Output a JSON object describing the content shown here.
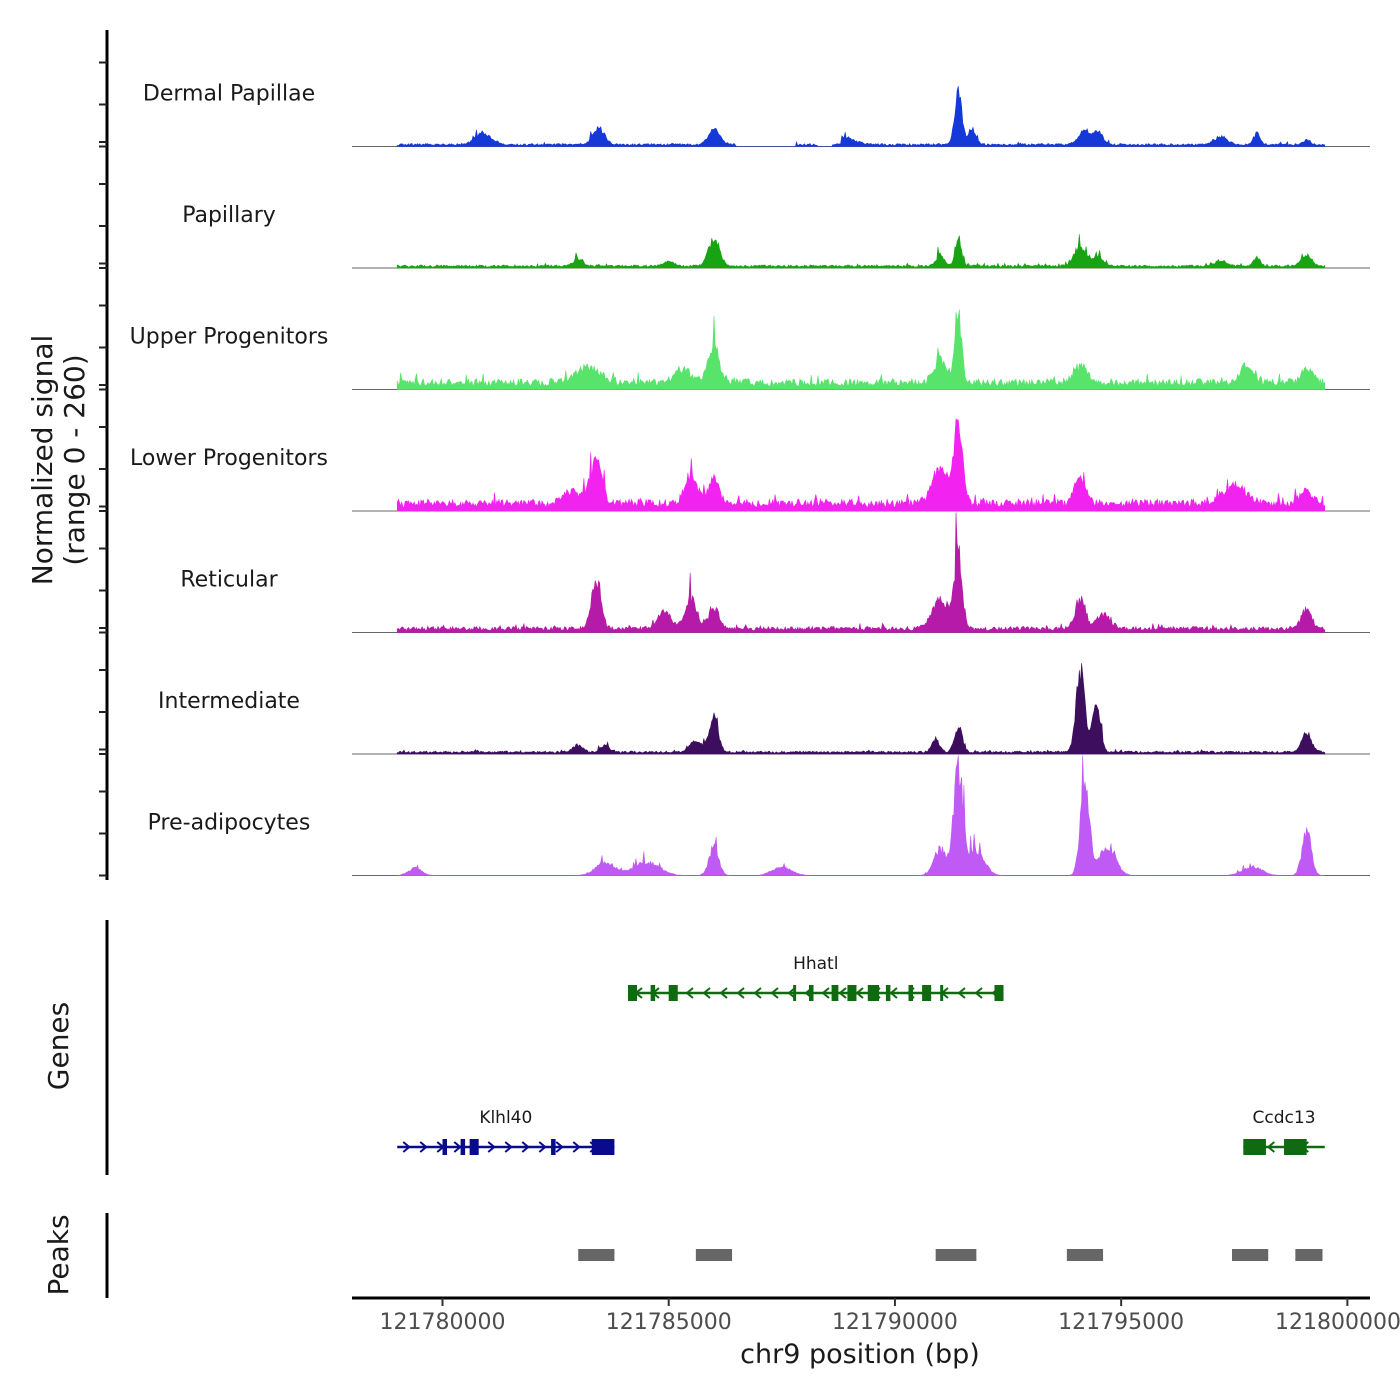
{
  "chart_data": {
    "type": "area",
    "title": "",
    "xlabel": "chr9 position (bp)",
    "ylabel_line1": "Normalized signal",
    "ylabel_line2": "(range 0 - 260)",
    "ylim": [
      0,
      260
    ],
    "xlim": [
      121778000,
      121800500
    ],
    "xticks": [
      121780000,
      121785000,
      121790000,
      121795000,
      121800000
    ],
    "xtick_labels": [
      "121780000",
      "121785000",
      "121790000",
      "121795000",
      "121800000"
    ],
    "tracks": [
      {
        "name": "Dermal Papillae",
        "color": "#1538d8",
        "base": 5,
        "peaks": [
          {
            "x": 121780900,
            "h": 28,
            "w": 250
          },
          {
            "x": 121783450,
            "h": 40,
            "w": 180
          },
          {
            "x": 121786000,
            "h": 35,
            "w": 180
          },
          {
            "x": 121788900,
            "h": 18,
            "w": 300
          },
          {
            "x": 121791400,
            "h": 120,
            "w": 110
          },
          {
            "x": 121791700,
            "h": 35,
            "w": 120
          },
          {
            "x": 121794200,
            "h": 30,
            "w": 200
          },
          {
            "x": 121794500,
            "h": 25,
            "w": 150
          },
          {
            "x": 121797200,
            "h": 20,
            "w": 200
          },
          {
            "x": 121798000,
            "h": 28,
            "w": 100
          },
          {
            "x": 121799100,
            "h": 10,
            "w": 120
          }
        ],
        "gaps": [
          [
            121786500,
            121787800
          ],
          [
            121788300,
            121788800
          ]
        ]
      },
      {
        "name": "Papillary",
        "color": "#18a315",
        "base": 5,
        "peaks": [
          {
            "x": 121783000,
            "h": 18,
            "w": 150
          },
          {
            "x": 121785000,
            "h": 12,
            "w": 150
          },
          {
            "x": 121786000,
            "h": 62,
            "w": 180
          },
          {
            "x": 121791400,
            "h": 68,
            "w": 100
          },
          {
            "x": 121791000,
            "h": 28,
            "w": 120
          },
          {
            "x": 121794100,
            "h": 40,
            "w": 200
          },
          {
            "x": 121794500,
            "h": 22,
            "w": 150
          },
          {
            "x": 121797200,
            "h": 12,
            "w": 200
          },
          {
            "x": 121798000,
            "h": 20,
            "w": 100
          },
          {
            "x": 121799100,
            "h": 28,
            "w": 150
          }
        ],
        "gaps": []
      },
      {
        "name": "Upper Progenitors",
        "color": "#58e36b",
        "base": 18,
        "peaks": [
          {
            "x": 121783200,
            "h": 35,
            "w": 400
          },
          {
            "x": 121786000,
            "h": 78,
            "w": 180
          },
          {
            "x": 121785300,
            "h": 30,
            "w": 250
          },
          {
            "x": 121791400,
            "h": 150,
            "w": 110
          },
          {
            "x": 121791000,
            "h": 50,
            "w": 200
          },
          {
            "x": 121794100,
            "h": 40,
            "w": 200
          },
          {
            "x": 121797800,
            "h": 38,
            "w": 200
          },
          {
            "x": 121799100,
            "h": 30,
            "w": 200
          }
        ],
        "gaps": []
      },
      {
        "name": "Lower Progenitors",
        "color": "#f222f0",
        "base": 20,
        "peaks": [
          {
            "x": 121783400,
            "h": 95,
            "w": 180
          },
          {
            "x": 121782900,
            "h": 30,
            "w": 300
          },
          {
            "x": 121785500,
            "h": 62,
            "w": 200
          },
          {
            "x": 121786000,
            "h": 55,
            "w": 160
          },
          {
            "x": 121791400,
            "h": 170,
            "w": 140
          },
          {
            "x": 121791000,
            "h": 80,
            "w": 250
          },
          {
            "x": 121794100,
            "h": 60,
            "w": 160
          },
          {
            "x": 121797500,
            "h": 40,
            "w": 350
          },
          {
            "x": 121799100,
            "h": 30,
            "w": 200
          }
        ],
        "gaps": []
      },
      {
        "name": "Reticular",
        "color": "#b51aa8",
        "base": 10,
        "peaks": [
          {
            "x": 121783400,
            "h": 112,
            "w": 150
          },
          {
            "x": 121784900,
            "h": 40,
            "w": 200
          },
          {
            "x": 121785500,
            "h": 68,
            "w": 180
          },
          {
            "x": 121786000,
            "h": 50,
            "w": 150
          },
          {
            "x": 121791400,
            "h": 175,
            "w": 120
          },
          {
            "x": 121791000,
            "h": 70,
            "w": 250
          },
          {
            "x": 121794100,
            "h": 70,
            "w": 160
          },
          {
            "x": 121794600,
            "h": 35,
            "w": 200
          },
          {
            "x": 121799100,
            "h": 50,
            "w": 150
          }
        ],
        "gaps": []
      },
      {
        "name": "Intermediate",
        "color": "#3d0e5e",
        "base": 5,
        "peaks": [
          {
            "x": 121783000,
            "h": 18,
            "w": 150
          },
          {
            "x": 121783600,
            "h": 15,
            "w": 150
          },
          {
            "x": 121785600,
            "h": 28,
            "w": 200
          },
          {
            "x": 121786000,
            "h": 92,
            "w": 130
          },
          {
            "x": 121791400,
            "h": 60,
            "w": 120
          },
          {
            "x": 121790900,
            "h": 30,
            "w": 120
          },
          {
            "x": 121794100,
            "h": 180,
            "w": 140
          },
          {
            "x": 121794450,
            "h": 120,
            "w": 120
          },
          {
            "x": 121799100,
            "h": 45,
            "w": 150
          }
        ],
        "gaps": []
      },
      {
        "name": "Pre-adipocytes",
        "color": "#c05af5",
        "base": 0,
        "peaks": [
          {
            "x": 121779400,
            "h": 18,
            "w": 200
          },
          {
            "x": 121783600,
            "h": 30,
            "w": 300
          },
          {
            "x": 121784500,
            "h": 30,
            "w": 400
          },
          {
            "x": 121786000,
            "h": 65,
            "w": 150
          },
          {
            "x": 121787500,
            "h": 20,
            "w": 300
          },
          {
            "x": 121791400,
            "h": 255,
            "w": 140
          },
          {
            "x": 121791000,
            "h": 60,
            "w": 200
          },
          {
            "x": 121791800,
            "h": 60,
            "w": 250
          },
          {
            "x": 121794200,
            "h": 210,
            "w": 140
          },
          {
            "x": 121794700,
            "h": 70,
            "w": 250
          },
          {
            "x": 121797900,
            "h": 20,
            "w": 300
          },
          {
            "x": 121799100,
            "h": 105,
            "w": 140
          }
        ],
        "gaps": [
          [
            121780000,
            121780500
          ],
          [
            121781200,
            121781700
          ],
          [
            121782200,
            121782800
          ],
          [
            121786700,
            121787000
          ],
          [
            121788300,
            121788700
          ],
          [
            121789300,
            121790500
          ],
          [
            121795800,
            121797300
          ]
        ]
      }
    ],
    "genes": [
      {
        "name": "Hhatl",
        "strand": "-",
        "start": 121784100,
        "end": 121792400,
        "color": "#0f6a10",
        "row": 1,
        "exons": [
          [
            121784100,
            121784300
          ],
          [
            121784600,
            121784700
          ],
          [
            121785000,
            121785200
          ],
          [
            121787750,
            121787800
          ],
          [
            121788100,
            121788200
          ],
          [
            121788600,
            121788750
          ],
          [
            121788950,
            121789150
          ],
          [
            121789400,
            121789650
          ],
          [
            121789800,
            121789900
          ],
          [
            121790300,
            121790400
          ],
          [
            121790600,
            121790800
          ],
          [
            121791000,
            121791050
          ],
          [
            121792200,
            121792400
          ]
        ]
      },
      {
        "name": "Klhl40",
        "strand": "+",
        "start": 121779000,
        "end": 121783800,
        "color": "#0a0a8c",
        "row": 2,
        "exons": [
          [
            121780000,
            121780100
          ],
          [
            121780400,
            121780500
          ],
          [
            121780600,
            121780800
          ],
          [
            121782400,
            121782500
          ],
          [
            121783300,
            121783800
          ]
        ]
      },
      {
        "name": "Ccdc13",
        "strand": "-",
        "start": 121797700,
        "end": 121799500,
        "color": "#0f6a10",
        "row": 2,
        "exons": [
          [
            121797700,
            121798200
          ],
          [
            121798600,
            121799100
          ]
        ]
      }
    ],
    "peak_regions": [
      [
        121783000,
        121783800
      ],
      [
        121785600,
        121786400
      ],
      [
        121790900,
        121791800
      ],
      [
        121793800,
        121794600
      ],
      [
        121797450,
        121798250
      ],
      [
        121798850,
        121799450
      ]
    ],
    "panel_labels": {
      "genes": "Genes",
      "peaks": "Peaks"
    }
  }
}
